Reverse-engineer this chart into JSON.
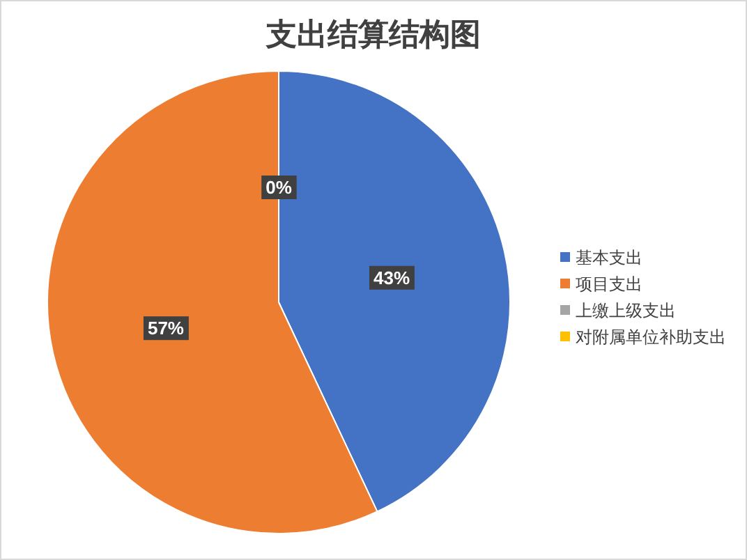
{
  "chart_data": {
    "type": "pie",
    "title": "支出结算结构图",
    "categories": [
      "基本支出",
      "项目支出",
      "上缴上级支出",
      "对附属单位补助支出"
    ],
    "values": [
      43,
      57,
      0,
      0
    ],
    "colors": [
      "#4472c4",
      "#ed7d31",
      "#a5a5a5",
      "#ffc000"
    ],
    "value_labels": [
      "43%",
      "57%",
      "0%",
      null
    ],
    "legend": "right"
  }
}
